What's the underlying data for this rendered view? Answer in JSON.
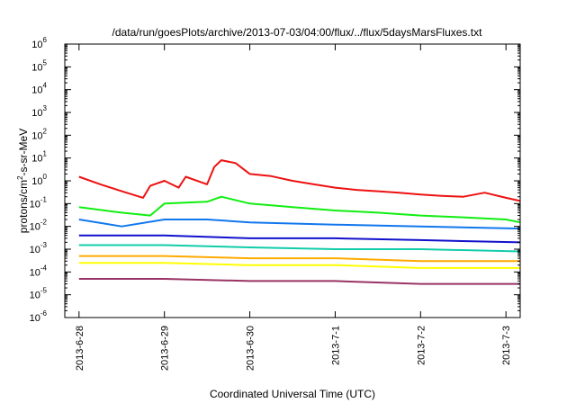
{
  "chart_data": {
    "type": "line",
    "title": "/data/run/goesPlots/archive/2013-07-03/04:00/flux/../flux/5daysMarsFluxes.txt",
    "xlabel": "Coordinated Universal Time (UTC)",
    "ylabel": {
      "base": "protons/cm",
      "sup": "2",
      "rest": "-s-sr-MeV"
    },
    "yscale": "log",
    "ylim": [
      1e-06,
      1000000.0
    ],
    "y_ticks": [
      {
        "base": "10",
        "exp": "6"
      },
      {
        "base": "10",
        "exp": "5"
      },
      {
        "base": "10",
        "exp": "4"
      },
      {
        "base": "10",
        "exp": "3"
      },
      {
        "base": "10",
        "exp": "2"
      },
      {
        "base": "10",
        "exp": "1"
      },
      {
        "base": "10",
        "exp": "0"
      },
      {
        "base": "10",
        "exp": "-1"
      },
      {
        "base": "10",
        "exp": "-2"
      },
      {
        "base": "10",
        "exp": "-3"
      },
      {
        "base": "10",
        "exp": "-4"
      },
      {
        "base": "10",
        "exp": "-5"
      },
      {
        "base": "10",
        "exp": "-6"
      }
    ],
    "x_ticks": [
      "2013-6-28",
      "2013-6-29",
      "2013-6-30",
      "2013-7-1",
      "2013-7-2",
      "2013-7-3"
    ],
    "xlim": [
      "2013-06-27 20:00",
      "2013-07-03 04:00"
    ],
    "grid": false,
    "legend": "none",
    "series": [
      {
        "color": "#ee1111",
        "values": [
          [
            "2013-06-28 00:00",
            1.5
          ],
          [
            "2013-06-28 06:00",
            0.7
          ],
          [
            "2013-06-28 12:00",
            0.35
          ],
          [
            "2013-06-28 18:00",
            0.18
          ],
          [
            "2013-06-28 20:00",
            0.6
          ],
          [
            "2013-06-29 00:00",
            1.0
          ],
          [
            "2013-06-29 04:00",
            0.5
          ],
          [
            "2013-06-29 06:00",
            1.5
          ],
          [
            "2013-06-29 12:00",
            0.7
          ],
          [
            "2013-06-29 14:00",
            4.0
          ],
          [
            "2013-06-29 16:00",
            8.0
          ],
          [
            "2013-06-29 20:00",
            6.0
          ],
          [
            "2013-06-30 00:00",
            2.0
          ],
          [
            "2013-06-30 06:00",
            1.6
          ],
          [
            "2013-06-30 12:00",
            1.0
          ],
          [
            "2013-06-30 18:00",
            0.7
          ],
          [
            "2013-07-01 00:00",
            0.5
          ],
          [
            "2013-07-01 06:00",
            0.4
          ],
          [
            "2013-07-01 12:00",
            0.35
          ],
          [
            "2013-07-01 18:00",
            0.3
          ],
          [
            "2013-07-02 00:00",
            0.25
          ],
          [
            "2013-07-02 06:00",
            0.22
          ],
          [
            "2013-07-02 12:00",
            0.2
          ],
          [
            "2013-07-02 18:00",
            0.3
          ],
          [
            "2013-07-03 00:00",
            0.18
          ],
          [
            "2013-07-03 04:00",
            0.13
          ]
        ]
      },
      {
        "color": "#11ee11",
        "values": [
          [
            "2013-06-28 00:00",
            0.07
          ],
          [
            "2013-06-28 12:00",
            0.04
          ],
          [
            "2013-06-28 20:00",
            0.03
          ],
          [
            "2013-06-29 00:00",
            0.1
          ],
          [
            "2013-06-29 12:00",
            0.12
          ],
          [
            "2013-06-29 16:00",
            0.2
          ],
          [
            "2013-06-30 00:00",
            0.1
          ],
          [
            "2013-06-30 12:00",
            0.07
          ],
          [
            "2013-07-01 00:00",
            0.05
          ],
          [
            "2013-07-01 12:00",
            0.04
          ],
          [
            "2013-07-02 00:00",
            0.03
          ],
          [
            "2013-07-02 12:00",
            0.025
          ],
          [
            "2013-07-03 00:00",
            0.02
          ],
          [
            "2013-07-03 04:00",
            0.015
          ]
        ]
      },
      {
        "color": "#1177ee",
        "values": [
          [
            "2013-06-28 00:00",
            0.02
          ],
          [
            "2013-06-28 12:00",
            0.01
          ],
          [
            "2013-06-29 00:00",
            0.02
          ],
          [
            "2013-06-29 12:00",
            0.02
          ],
          [
            "2013-06-30 00:00",
            0.015
          ],
          [
            "2013-07-01 00:00",
            0.012
          ],
          [
            "2013-07-02 00:00",
            0.01
          ],
          [
            "2013-07-03 04:00",
            0.008
          ]
        ]
      },
      {
        "color": "#1111cc",
        "values": [
          [
            "2013-06-28 00:00",
            0.004
          ],
          [
            "2013-06-29 00:00",
            0.004
          ],
          [
            "2013-06-30 00:00",
            0.003
          ],
          [
            "2013-07-01 00:00",
            0.003
          ],
          [
            "2013-07-02 00:00",
            0.0025
          ],
          [
            "2013-07-03 04:00",
            0.002
          ]
        ]
      },
      {
        "color": "#11ccaa",
        "values": [
          [
            "2013-06-28 00:00",
            0.0015
          ],
          [
            "2013-06-29 00:00",
            0.0015
          ],
          [
            "2013-06-30 00:00",
            0.0012
          ],
          [
            "2013-07-01 00:00",
            0.001
          ],
          [
            "2013-07-02 00:00",
            0.001
          ],
          [
            "2013-07-03 04:00",
            0.0008
          ]
        ]
      },
      {
        "color": "#ffaa00",
        "values": [
          [
            "2013-06-28 00:00",
            0.0005
          ],
          [
            "2013-06-29 00:00",
            0.0005
          ],
          [
            "2013-06-30 00:00",
            0.0004
          ],
          [
            "2013-07-01 00:00",
            0.0004
          ],
          [
            "2013-07-02 00:00",
            0.0003
          ],
          [
            "2013-07-03 04:00",
            0.0003
          ]
        ]
      },
      {
        "color": "#ffff00",
        "values": [
          [
            "2013-06-28 00:00",
            0.00025
          ],
          [
            "2013-06-29 00:00",
            0.00025
          ],
          [
            "2013-06-30 00:00",
            0.0002
          ],
          [
            "2013-07-01 00:00",
            0.0002
          ],
          [
            "2013-07-02 00:00",
            0.00015
          ],
          [
            "2013-07-03 04:00",
            0.00015
          ]
        ]
      },
      {
        "color": "#993366",
        "values": [
          [
            "2013-06-28 00:00",
            5e-05
          ],
          [
            "2013-06-29 00:00",
            5e-05
          ],
          [
            "2013-06-30 00:00",
            4e-05
          ],
          [
            "2013-07-01 00:00",
            4e-05
          ],
          [
            "2013-07-02 00:00",
            3e-05
          ],
          [
            "2013-07-03 04:00",
            3e-05
          ]
        ]
      }
    ]
  }
}
